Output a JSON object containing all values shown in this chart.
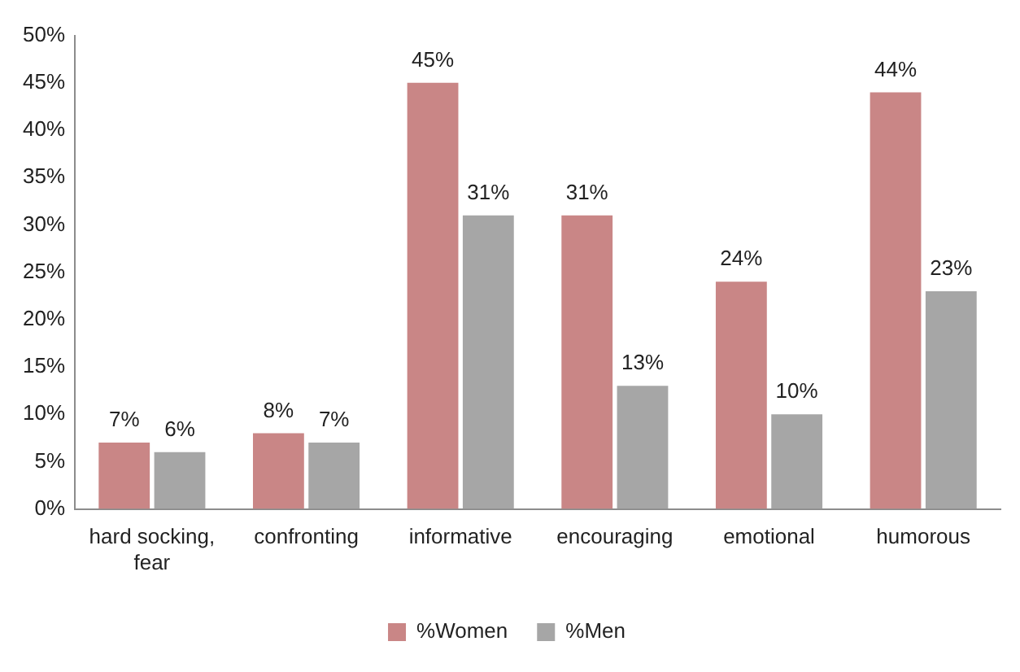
{
  "chart_data": {
    "type": "bar",
    "categories": [
      "hard socking, fear",
      "confronting",
      "informative",
      "encouraging",
      "emotional",
      "humorous"
    ],
    "series": [
      {
        "name": "%Women",
        "color": "#c98686",
        "values": [
          7,
          8,
          45,
          31,
          24,
          44
        ],
        "value_labels": [
          "7%",
          "8%",
          "45%",
          "31%",
          "24%",
          "44%"
        ]
      },
      {
        "name": "%Men",
        "color": "#a6a6a6",
        "values": [
          6,
          7,
          31,
          13,
          10,
          23
        ],
        "value_labels": [
          "6%",
          "7%",
          "31%",
          "13%",
          "10%",
          "23%"
        ]
      }
    ],
    "ylim": [
      0,
      50
    ],
    "yticks": [
      {
        "value": 0,
        "label": "0%"
      },
      {
        "value": 5,
        "label": "5%"
      },
      {
        "value": 10,
        "label": "10%"
      },
      {
        "value": 15,
        "label": "15%"
      },
      {
        "value": 20,
        "label": "20%"
      },
      {
        "value": 25,
        "label": "25%"
      },
      {
        "value": 30,
        "label": "30%"
      },
      {
        "value": 35,
        "label": "35%"
      },
      {
        "value": 40,
        "label": "40%"
      },
      {
        "value": 45,
        "label": "45%"
      },
      {
        "value": 50,
        "label": "50%"
      }
    ],
    "grid": false,
    "legend": "bottom"
  }
}
